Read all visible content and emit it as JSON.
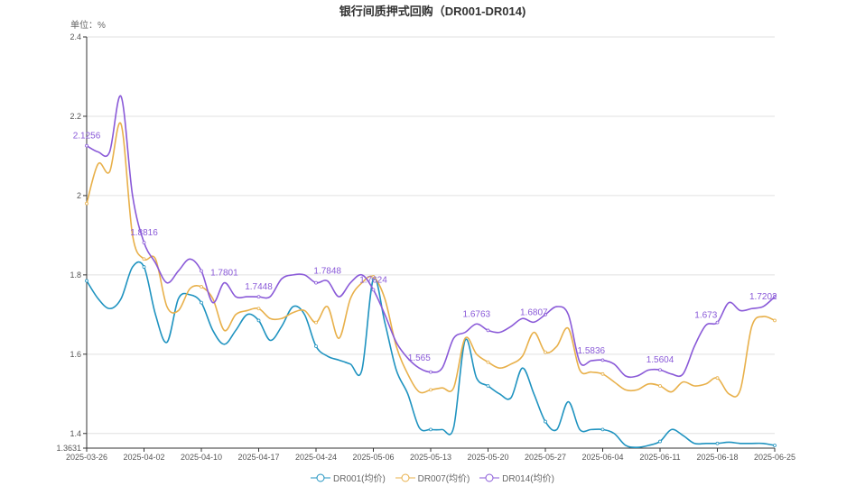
{
  "chart_data": {
    "type": "line",
    "title": "银行间质押式回购（DR001-DR014)",
    "unit_label": "单位：%",
    "ylim": [
      1.3631,
      2.4
    ],
    "yticks": [
      "2.4",
      "2.2",
      "2",
      "1.8",
      "1.6",
      "1.4",
      "1.3631"
    ],
    "ytick_values": [
      2.4,
      2.2,
      2.0,
      1.8,
      1.6,
      1.4,
      1.3631
    ],
    "x_count": 61,
    "xticks": [
      "2025-03-26",
      "2025-04-02",
      "2025-04-10",
      "2025-04-17",
      "2025-04-24",
      "2025-05-06",
      "2025-05-13",
      "2025-05-20",
      "2025-05-27",
      "2025-06-04",
      "2025-06-11",
      "2025-06-18",
      "2025-06-25"
    ],
    "xtick_interval": 5,
    "grid": true,
    "legend_position": "bottom",
    "series": [
      {
        "name": "DR001(均价)",
        "color": "#1f93c0",
        "values": [
          1.785,
          1.74,
          1.715,
          1.74,
          1.82,
          1.82,
          1.7,
          1.63,
          1.74,
          1.75,
          1.73,
          1.66,
          1.625,
          1.66,
          1.7,
          1.685,
          1.635,
          1.67,
          1.72,
          1.7,
          1.62,
          1.595,
          1.585,
          1.575,
          1.56,
          1.79,
          1.68,
          1.56,
          1.5,
          1.415,
          1.41,
          1.41,
          1.415,
          1.635,
          1.54,
          1.52,
          1.5,
          1.49,
          1.565,
          1.5,
          1.43,
          1.41,
          1.48,
          1.41,
          1.41,
          1.41,
          1.4,
          1.37,
          1.365,
          1.37,
          1.38,
          1.41,
          1.395,
          1.375,
          1.375,
          1.375,
          1.378,
          1.375,
          1.375,
          1.375,
          1.37
        ]
      },
      {
        "name": "DR007(均价)",
        "color": "#e8b04a",
        "values": [
          1.98,
          2.08,
          2.06,
          2.18,
          1.9,
          1.84,
          1.84,
          1.72,
          1.71,
          1.765,
          1.77,
          1.74,
          1.66,
          1.7,
          1.71,
          1.715,
          1.69,
          1.69,
          1.705,
          1.71,
          1.68,
          1.72,
          1.64,
          1.74,
          1.78,
          1.795,
          1.74,
          1.62,
          1.55,
          1.505,
          1.51,
          1.515,
          1.515,
          1.64,
          1.6,
          1.58,
          1.565,
          1.575,
          1.595,
          1.655,
          1.605,
          1.62,
          1.665,
          1.56,
          1.555,
          1.55,
          1.53,
          1.51,
          1.51,
          1.525,
          1.52,
          1.505,
          1.53,
          1.52,
          1.525,
          1.54,
          1.5,
          1.51,
          1.67,
          1.695,
          1.685
        ]
      },
      {
        "name": "DR014(均价)",
        "color": "#8a5ad8",
        "values": [
          2.1256,
          2.11,
          2.11,
          2.25,
          2.0,
          1.8816,
          1.83,
          1.78,
          1.81,
          1.84,
          1.81,
          1.73,
          1.7801,
          1.745,
          1.745,
          1.7448,
          1.745,
          1.79,
          1.8,
          1.8,
          1.78,
          1.7848,
          1.745,
          1.78,
          1.8,
          1.7624,
          1.7,
          1.63,
          1.59,
          1.565,
          1.555,
          1.565,
          1.64,
          1.655,
          1.6763,
          1.66,
          1.655,
          1.67,
          1.69,
          1.6807,
          1.7,
          1.72,
          1.7,
          1.58,
          1.5836,
          1.585,
          1.575,
          1.545,
          1.545,
          1.56,
          1.5604,
          1.55,
          1.55,
          1.62,
          1.673,
          1.68,
          1.73,
          1.71,
          1.715,
          1.7202,
          1.745
        ]
      }
    ],
    "annotations": [
      {
        "series": 2,
        "index": 0,
        "text": "2.1256"
      },
      {
        "series": 2,
        "index": 5,
        "text": "1.8816"
      },
      {
        "series": 2,
        "index": 12,
        "text": "1.7801"
      },
      {
        "series": 2,
        "index": 15,
        "text": "1.7448"
      },
      {
        "series": 2,
        "index": 21,
        "text": "1.7848"
      },
      {
        "series": 2,
        "index": 25,
        "text": "1.7624"
      },
      {
        "series": 2,
        "index": 29,
        "text": "1.565"
      },
      {
        "series": 2,
        "index": 34,
        "text": "1.6763"
      },
      {
        "series": 2,
        "index": 39,
        "text": "1.6807"
      },
      {
        "series": 2,
        "index": 44,
        "text": "1.5836"
      },
      {
        "series": 2,
        "index": 50,
        "text": "1.5604"
      },
      {
        "series": 2,
        "index": 54,
        "text": "1.673"
      },
      {
        "series": 2,
        "index": 59,
        "text": "1.7202"
      }
    ]
  }
}
